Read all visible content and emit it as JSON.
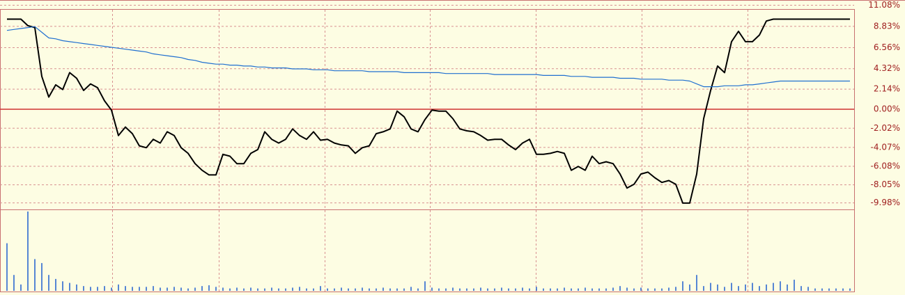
{
  "chart_data": [
    {
      "type": "line",
      "ylim": [
        -10.6,
        10.6
      ],
      "yticks": [
        {
          "value": 11.08,
          "label": "11.08%"
        },
        {
          "value": 8.83,
          "label": "8.83%"
        },
        {
          "value": 6.56,
          "label": "6.56%"
        },
        {
          "value": 4.32,
          "label": "4.32%"
        },
        {
          "value": 2.14,
          "label": "2.14%"
        },
        {
          "value": 0,
          "label": "0.00%"
        },
        {
          "value": -2.02,
          "label": "-2.02%"
        },
        {
          "value": -4.07,
          "label": "-4.07%"
        },
        {
          "value": -6.08,
          "label": "-6.08%"
        },
        {
          "value": -8.05,
          "label": "-8.05%"
        },
        {
          "value": -9.98,
          "label": "-9.98%"
        }
      ],
      "grid": true,
      "series": [
        {
          "color": "#000000",
          "values": [
            9.6,
            9.6,
            9.6,
            8.9,
            8.7,
            3.5,
            1.3,
            2.6,
            2.1,
            3.9,
            3.3,
            2.0,
            2.7,
            2.3,
            0.9,
            -0.1,
            -2.8,
            -1.9,
            -2.6,
            -3.9,
            -4.1,
            -3.2,
            -3.6,
            -2.4,
            -2.8,
            -4.1,
            -4.7,
            -5.8,
            -6.5,
            -7.0,
            -7.0,
            -4.8,
            -5.0,
            -5.8,
            -5.8,
            -4.7,
            -4.3,
            -2.4,
            -3.2,
            -3.6,
            -3.2,
            -2.1,
            -2.8,
            -3.2,
            -2.4,
            -3.3,
            -3.2,
            -3.6,
            -3.8,
            -3.9,
            -4.7,
            -4.1,
            -3.9,
            -2.6,
            -2.4,
            -2.1,
            -0.2,
            -0.8,
            -2.1,
            -2.4,
            -1.1,
            -0.1,
            -0.2,
            -0.2,
            -1.0,
            -2.1,
            -2.3,
            -2.4,
            -2.8,
            -3.3,
            -3.2,
            -3.2,
            -3.8,
            -4.3,
            -3.6,
            -3.2,
            -4.8,
            -4.8,
            -4.7,
            -4.5,
            -4.7,
            -6.5,
            -6.1,
            -6.5,
            -5.0,
            -5.8,
            -5.6,
            -5.8,
            -6.9,
            -8.4,
            -8.0,
            -6.9,
            -6.7,
            -7.3,
            -7.8,
            -7.6,
            -8.0,
            -10.0,
            -10.0,
            -6.9,
            -1.0,
            2.0,
            4.6,
            3.9,
            7.2,
            8.3,
            7.2,
            7.2,
            7.9,
            9.4,
            9.6,
            9.6,
            9.6,
            9.6,
            9.6,
            9.6,
            9.6,
            9.6,
            9.6,
            9.6,
            9.6,
            9.6
          ]
        },
        {
          "color": "#1f6fd0",
          "values": [
            8.4,
            8.5,
            8.6,
            8.7,
            8.8,
            8.2,
            7.6,
            7.5,
            7.3,
            7.2,
            7.1,
            7.0,
            6.9,
            6.8,
            6.7,
            6.6,
            6.5,
            6.4,
            6.3,
            6.2,
            6.1,
            5.9,
            5.8,
            5.7,
            5.6,
            5.5,
            5.3,
            5.2,
            5.0,
            4.9,
            4.8,
            4.8,
            4.7,
            4.7,
            4.6,
            4.6,
            4.5,
            4.5,
            4.4,
            4.4,
            4.4,
            4.3,
            4.3,
            4.3,
            4.2,
            4.2,
            4.2,
            4.1,
            4.1,
            4.1,
            4.1,
            4.1,
            4.0,
            4.0,
            4.0,
            4.0,
            4.0,
            3.9,
            3.9,
            3.9,
            3.9,
            3.9,
            3.9,
            3.8,
            3.8,
            3.8,
            3.8,
            3.8,
            3.8,
            3.8,
            3.7,
            3.7,
            3.7,
            3.7,
            3.7,
            3.7,
            3.7,
            3.6,
            3.6,
            3.6,
            3.6,
            3.5,
            3.5,
            3.5,
            3.4,
            3.4,
            3.4,
            3.4,
            3.3,
            3.3,
            3.3,
            3.2,
            3.2,
            3.2,
            3.2,
            3.1,
            3.1,
            3.1,
            3.0,
            2.7,
            2.4,
            2.4,
            2.4,
            2.5,
            2.5,
            2.5,
            2.6,
            2.6,
            2.7,
            2.8,
            2.9,
            3.0,
            3.0,
            3.0,
            3.0,
            3.0,
            3.0,
            3.0,
            3.0,
            3.0,
            3.0,
            3.0
          ]
        }
      ]
    },
    {
      "type": "bar",
      "color": "#1f5fcf",
      "ylim": [
        0,
        100
      ],
      "values": [
        60,
        20,
        8,
        100,
        40,
        35,
        20,
        15,
        12,
        10,
        8,
        6,
        5,
        5,
        6,
        4,
        8,
        6,
        5,
        5,
        5,
        6,
        4,
        4,
        5,
        4,
        3,
        4,
        6,
        7,
        5,
        4,
        3,
        4,
        3,
        4,
        3,
        3,
        4,
        3,
        3,
        4,
        5,
        3,
        3,
        6,
        3,
        3,
        4,
        3,
        3,
        4,
        3,
        3,
        4,
        3,
        3,
        3,
        5,
        3,
        12,
        4,
        3,
        3,
        4,
        3,
        3,
        3,
        4,
        3,
        3,
        4,
        3,
        3,
        4,
        3,
        5,
        3,
        3,
        3,
        4,
        3,
        3,
        4,
        3,
        3,
        3,
        4,
        6,
        4,
        3,
        4,
        3,
        3,
        3,
        4,
        5,
        12,
        8,
        20,
        6,
        10,
        8,
        5,
        10,
        6,
        8,
        10,
        6,
        8,
        10,
        12,
        8,
        14,
        6,
        5,
        3,
        3,
        3,
        3,
        3,
        3
      ]
    }
  ]
}
